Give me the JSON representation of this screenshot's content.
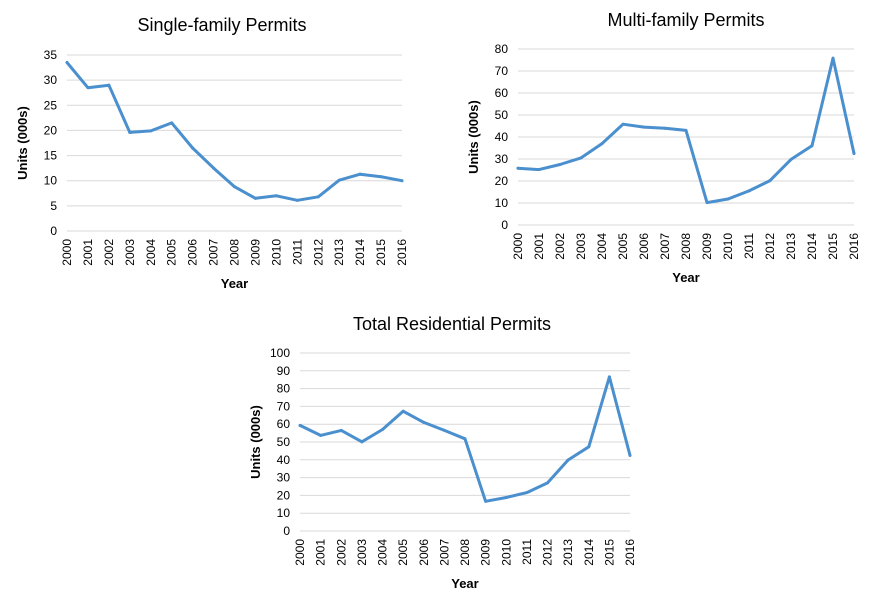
{
  "chart_data": [
    {
      "type": "line",
      "title": "Single-family Permits",
      "xlabel": "Year",
      "ylabel": "Units (000s)",
      "categories": [
        "2000",
        "2001",
        "2002",
        "2003",
        "2004",
        "2005",
        "2006",
        "2007",
        "2008",
        "2009",
        "2010",
        "2011",
        "2012",
        "2013",
        "2014",
        "2015",
        "2016"
      ],
      "series": [
        {
          "values": [
            33.5,
            28.5,
            29.0,
            19.6,
            19.9,
            21.5,
            16.5,
            12.5,
            8.8,
            6.5,
            7.0,
            6.1,
            6.8,
            10.1,
            11.3,
            10.8,
            10.0
          ]
        }
      ],
      "ylim": [
        0,
        35
      ],
      "yticks": [
        0,
        5,
        10,
        15,
        20,
        25,
        30,
        35
      ],
      "color": "#4a8fce",
      "grid": true
    },
    {
      "type": "line",
      "title": "Multi-family Permits",
      "xlabel": "Year",
      "ylabel": "Units (000s)",
      "categories": [
        "2000",
        "2001",
        "2002",
        "2003",
        "2004",
        "2005",
        "2006",
        "2007",
        "2008",
        "2009",
        "2010",
        "2011",
        "2012",
        "2013",
        "2014",
        "2015",
        "2016"
      ],
      "series": [
        {
          "values": [
            25.8,
            25.2,
            27.5,
            30.5,
            37.0,
            45.8,
            44.5,
            44.0,
            43.0,
            10.2,
            11.8,
            15.5,
            20.2,
            29.8,
            36.0,
            75.8,
            32.5
          ]
        }
      ],
      "ylim": [
        0,
        80
      ],
      "yticks": [
        0,
        10,
        20,
        30,
        40,
        50,
        60,
        70,
        80
      ],
      "color": "#4a8fce",
      "grid": true
    },
    {
      "type": "line",
      "title": "Total Residential Permits",
      "xlabel": "Year",
      "ylabel": "Units (000s)",
      "categories": [
        "2000",
        "2001",
        "2002",
        "2003",
        "2004",
        "2005",
        "2006",
        "2007",
        "2008",
        "2009",
        "2010",
        "2011",
        "2012",
        "2013",
        "2014",
        "2015",
        "2016"
      ],
      "series": [
        {
          "values": [
            59.3,
            53.7,
            56.5,
            50.1,
            57.0,
            67.3,
            61.0,
            56.5,
            51.8,
            16.7,
            18.8,
            21.6,
            27.0,
            39.9,
            47.3,
            86.6,
            42.5
          ]
        }
      ],
      "ylim": [
        0,
        100
      ],
      "yticks": [
        0,
        10,
        20,
        30,
        40,
        50,
        60,
        70,
        80,
        90,
        100
      ],
      "color": "#4a8fce",
      "grid": true
    }
  ]
}
